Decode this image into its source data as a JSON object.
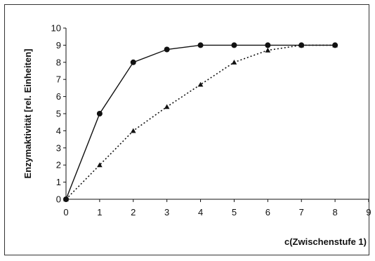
{
  "chart_data": {
    "type": "line",
    "title": "",
    "xlabel": "c(Zwischenstufe 1)",
    "ylabel": "Enzymaktivität [rel. Einheiten]",
    "xlim": [
      0,
      9
    ],
    "ylim": [
      0,
      10
    ],
    "xticks": [
      0,
      1,
      2,
      3,
      4,
      5,
      6,
      7,
      8,
      9
    ],
    "yticks": [
      0,
      1,
      2,
      3,
      4,
      5,
      6,
      7,
      8,
      9,
      10
    ],
    "grid": false,
    "legend": "none",
    "series": [
      {
        "style": "solid",
        "marker": "circle",
        "color": "#111111",
        "x": [
          0,
          1,
          2,
          3,
          4,
          5,
          6,
          7,
          8
        ],
        "y": [
          0,
          5,
          8,
          8.75,
          9,
          9,
          9,
          9,
          9
        ]
      },
      {
        "style": "dotted",
        "marker": "triangle",
        "color": "#111111",
        "x": [
          0,
          1,
          2,
          3,
          4,
          5,
          6,
          7,
          8
        ],
        "y": [
          0,
          2,
          4,
          5.4,
          6.7,
          8,
          8.7,
          9,
          9
        ]
      }
    ]
  }
}
